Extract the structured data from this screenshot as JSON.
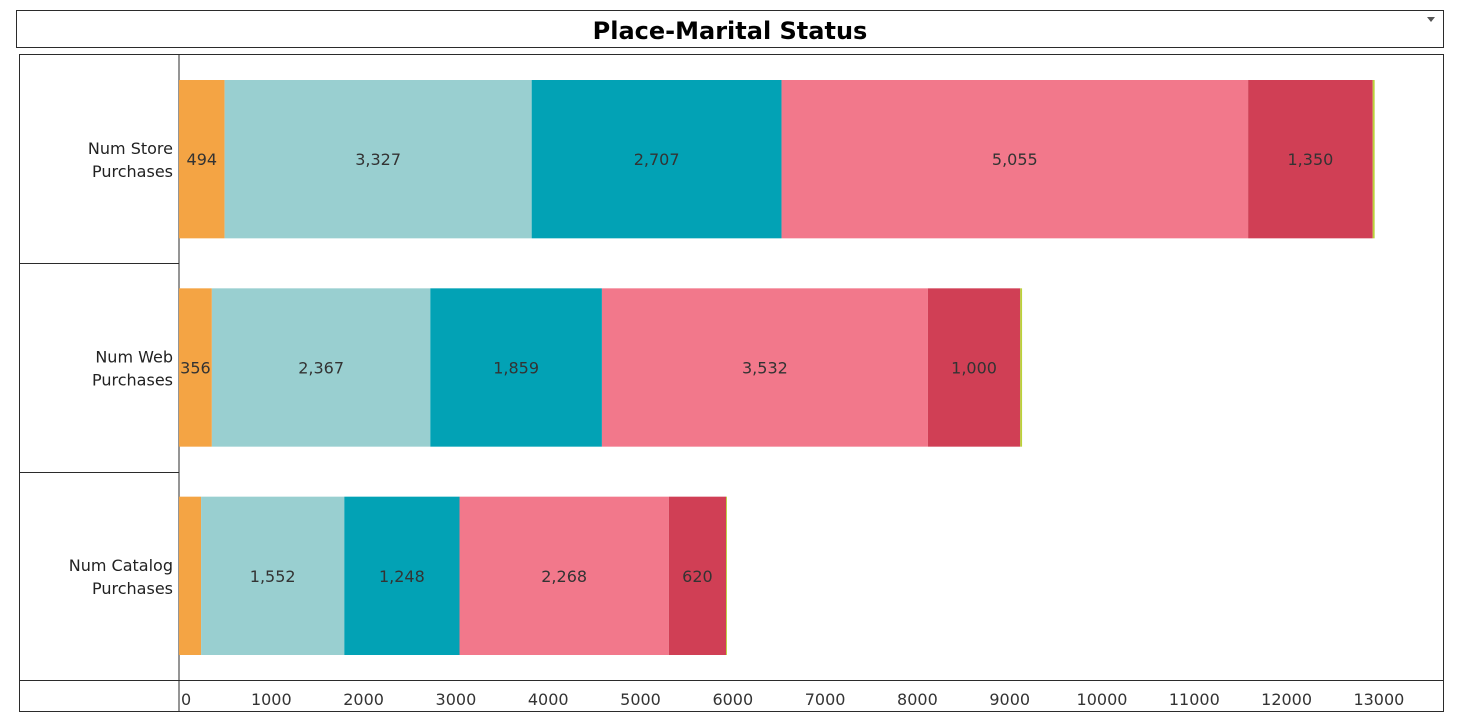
{
  "header": {
    "title": "Place-Marital Status"
  },
  "colors": {
    "segments": [
      "#F4A444",
      "#99CFD0",
      "#02A2B5",
      "#F2788B",
      "#D03F55",
      "#BAD239"
    ]
  },
  "chart_data": {
    "type": "bar",
    "orientation": "horizontal",
    "stacked": true,
    "title": "Place-Marital Status",
    "categories": [
      [
        "Num Store",
        "Purchases"
      ],
      [
        "Num Web",
        "Purchases"
      ],
      [
        "Num Catalog",
        "Purchases"
      ]
    ],
    "series": [
      {
        "values": [
          494,
          356,
          239
        ],
        "labels": [
          "494",
          "356",
          ""
        ]
      },
      {
        "values": [
          3327,
          2367,
          1552
        ],
        "labels": [
          "3,327",
          "2,367",
          "1,552"
        ]
      },
      {
        "values": [
          2707,
          1859,
          1248
        ],
        "labels": [
          "2,707",
          "1,859",
          "1,248"
        ]
      },
      {
        "values": [
          5055,
          3532,
          2268
        ],
        "labels": [
          "5,055",
          "3,532",
          "2,268"
        ]
      },
      {
        "values": [
          1350,
          1000,
          620
        ],
        "labels": [
          "1,350",
          "1,000",
          "620"
        ]
      },
      {
        "values": [
          21,
          20,
          10
        ],
        "labels": [
          "",
          "",
          ""
        ]
      }
    ],
    "xlim": [
      0,
      13600
    ],
    "xticks": [
      0,
      1000,
      2000,
      3000,
      4000,
      5000,
      6000,
      7000,
      8000,
      9000,
      10000,
      11000,
      12000,
      13000
    ],
    "grid": false,
    "legend": "none"
  }
}
